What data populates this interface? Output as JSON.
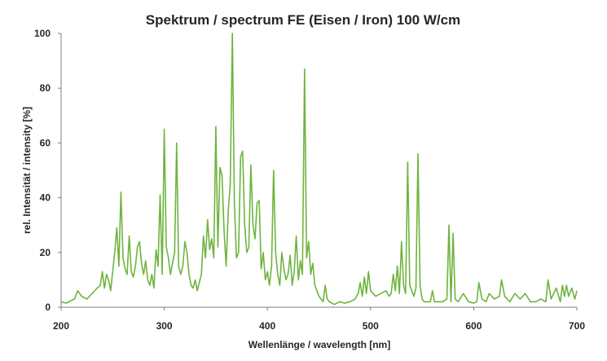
{
  "chart_data": {
    "type": "line",
    "title": "Spektrum / spectrum FE (Eisen / Iron) 100 W/cm",
    "xlabel": "Wellenlänge / wavelength [nm]",
    "ylabel": "rel. Intensität / intensity [%]",
    "xlim": [
      200,
      700
    ],
    "ylim": [
      0,
      100
    ],
    "x_ticks": [
      200,
      300,
      400,
      500,
      600,
      700
    ],
    "y_ticks": [
      0,
      20,
      40,
      60,
      80,
      100
    ],
    "grid": false,
    "legend": "none",
    "color": "#6eb43f",
    "series": [
      {
        "x": [
          200,
          205,
          210,
          213,
          216,
          220,
          225,
          230,
          235,
          238,
          240,
          242,
          244,
          246,
          248,
          250,
          252,
          254,
          256,
          258,
          260,
          262,
          264,
          266,
          268,
          270,
          272,
          274,
          276,
          278,
          280,
          282,
          284,
          286,
          288,
          290,
          292,
          294,
          296,
          298,
          300,
          302,
          304,
          306,
          308,
          310,
          312,
          314,
          316,
          318,
          320,
          322,
          324,
          326,
          328,
          330,
          332,
          334,
          336,
          338,
          340,
          342,
          344,
          346,
          348,
          350,
          352,
          354,
          356,
          358,
          360,
          362,
          364,
          366,
          368,
          370,
          372,
          374,
          376,
          378,
          380,
          382,
          384,
          386,
          388,
          390,
          392,
          394,
          396,
          398,
          400,
          402,
          404,
          406,
          408,
          410,
          412,
          414,
          416,
          418,
          420,
          422,
          424,
          426,
          428,
          430,
          432,
          434,
          436,
          438,
          440,
          442,
          444,
          446,
          448,
          450,
          452,
          454,
          456,
          458,
          460,
          465,
          470,
          475,
          480,
          485,
          488,
          490,
          492,
          494,
          496,
          498,
          500,
          505,
          510,
          515,
          518,
          520,
          522,
          524,
          526,
          528,
          530,
          532,
          534,
          536,
          538,
          540,
          542,
          544,
          546,
          548,
          550,
          552,
          555,
          558,
          560,
          562,
          565,
          570,
          574,
          576,
          578,
          580,
          582,
          585,
          590,
          595,
          600,
          603,
          605,
          608,
          612,
          615,
          620,
          625,
          627,
          630,
          635,
          640,
          645,
          650,
          655,
          660,
          665,
          670,
          672,
          675,
          680,
          684,
          686,
          688,
          690,
          692,
          695,
          698,
          700
        ],
        "y": [
          2,
          1.5,
          2.5,
          3,
          6,
          4,
          3,
          5,
          7,
          8,
          13,
          7,
          12,
          10,
          6,
          13,
          20,
          29,
          15,
          42,
          18,
          14,
          12,
          26,
          13,
          11,
          15,
          22,
          24,
          16,
          12,
          17,
          10,
          8,
          12,
          7,
          21,
          15,
          41,
          12,
          65,
          22,
          18,
          12,
          16,
          20,
          60,
          15,
          12,
          15,
          24,
          20,
          12,
          8,
          7,
          10,
          6,
          9,
          12,
          26,
          18,
          32,
          21,
          25,
          18,
          66,
          22,
          51,
          48,
          28,
          15,
          35,
          45,
          100,
          38,
          18,
          20,
          55,
          57,
          30,
          20,
          22,
          52,
          30,
          25,
          38,
          39,
          14,
          20,
          10,
          13,
          8,
          15,
          50,
          20,
          12,
          8,
          20,
          14,
          10,
          12,
          19,
          8,
          13,
          26,
          10,
          17,
          12,
          87,
          18,
          24,
          12,
          16,
          8,
          6,
          4,
          3,
          2,
          8,
          3,
          2,
          1,
          2,
          1.5,
          2,
          3,
          5,
          9,
          4,
          11,
          5,
          13,
          6,
          4,
          5,
          6,
          4,
          5,
          12,
          6,
          15,
          5,
          24,
          8,
          5,
          53,
          8,
          6,
          4,
          7,
          56,
          8,
          3,
          2,
          2,
          2,
          6,
          2,
          2,
          2,
          3,
          30,
          2,
          27,
          3,
          2,
          5,
          2,
          1.5,
          2,
          9,
          3,
          2,
          5,
          3,
          4,
          10,
          4,
          2,
          5,
          3,
          5,
          2,
          2,
          3,
          2,
          10,
          3,
          7,
          2,
          8,
          4,
          8,
          4,
          7,
          3,
          6
        ]
      }
    ]
  }
}
